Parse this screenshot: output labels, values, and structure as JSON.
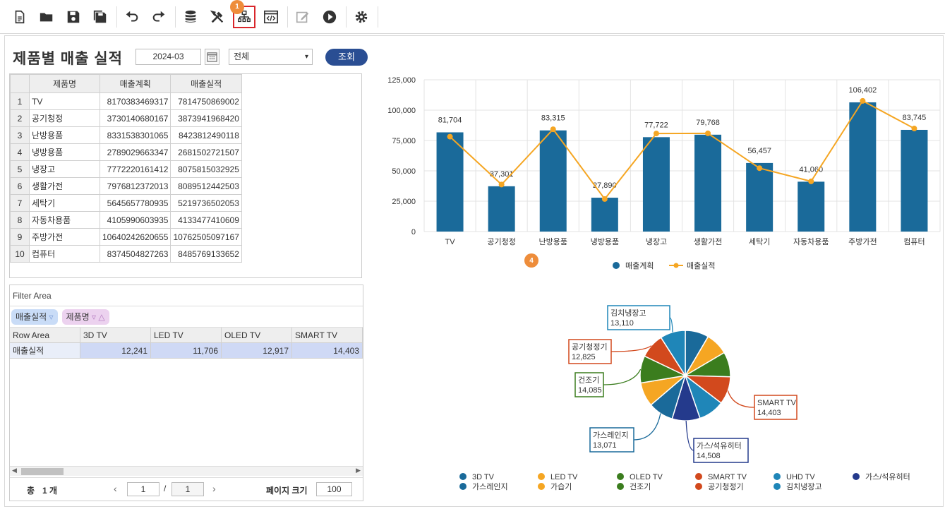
{
  "toolbar": {
    "items": [
      "new-document",
      "open-folder",
      "save",
      "save-as",
      "undo",
      "redo",
      "database",
      "tools",
      "hierarchy",
      "code-window",
      "edit",
      "run",
      "settings"
    ],
    "highlight_badge": "1"
  },
  "header": {
    "title": "제품별 매출 실적",
    "date_value": "2024-03",
    "select_value": "전체",
    "search_label": "조회"
  },
  "grid": {
    "columns": [
      "제품명",
      "매출계획",
      "매출실적"
    ],
    "rows": [
      {
        "n": "1",
        "name": "TV",
        "plan": "8170383469317",
        "actual": "7814750869002"
      },
      {
        "n": "2",
        "name": "공기청정",
        "plan": "3730140680167",
        "actual": "3873941968420"
      },
      {
        "n": "3",
        "name": "난방용품",
        "plan": "8331538301065",
        "actual": "8423812490118"
      },
      {
        "n": "4",
        "name": "냉방용품",
        "plan": "2789029663347",
        "actual": "2681502721507"
      },
      {
        "n": "5",
        "name": "냉장고",
        "plan": "7772220161412",
        "actual": "8075815032925"
      },
      {
        "n": "6",
        "name": "생활가전",
        "plan": "7976812372013",
        "actual": "8089512442503"
      },
      {
        "n": "7",
        "name": "세탁기",
        "plan": "5645657780935",
        "actual": "5219736502053"
      },
      {
        "n": "8",
        "name": "자동차용품",
        "plan": "4105990603935",
        "actual": "4133477410609"
      },
      {
        "n": "9",
        "name": "주방가전",
        "plan": "10640242620655",
        "actual": "10762505097167"
      },
      {
        "n": "10",
        "name": "컴퓨터",
        "plan": "8374504827263",
        "actual": "8485769133652"
      }
    ]
  },
  "pivot": {
    "filter_area_label": "Filter Area",
    "chip_measure": "매출실적",
    "chip_dimension": "제품명",
    "row_area_label": "Row Area",
    "columns": [
      "3D TV",
      "LED TV",
      "OLED TV",
      "SMART TV"
    ],
    "row_label": "매출실적",
    "values": [
      "12,241",
      "11,706",
      "12,917",
      "14,403"
    ],
    "pager": {
      "total_label": "총",
      "total_count": "1 개",
      "page_current": "1",
      "page_sep": "/",
      "page_total": "1",
      "page_size_label": "페이지 크기",
      "page_size": "100"
    }
  },
  "colors": {
    "bar": "#1a6a9a",
    "line": "#f5a623",
    "button": "#2a4e93",
    "badge": "#ee8d3b"
  },
  "annotation_badge_4": "4",
  "chart_data": [
    {
      "type": "bar",
      "categories": [
        "TV",
        "공기청정",
        "난방용품",
        "냉방용품",
        "냉장고",
        "생활가전",
        "세탁기",
        "자동차용품",
        "주방가전",
        "컴퓨터"
      ],
      "series": [
        {
          "name": "매출계획",
          "type": "bar",
          "values": [
            81704,
            37301,
            83315,
            27890,
            77722,
            79768,
            56457,
            41060,
            106402,
            83745
          ]
        },
        {
          "name": "매출실적",
          "type": "line",
          "values": [
            78148,
            38739,
            84238,
            26815,
            80758,
            80895,
            52197,
            41335,
            107625,
            84858
          ]
        }
      ],
      "data_labels": [
        "81,704",
        "37,301",
        "83,315",
        "27,890",
        "77,722",
        "79,768",
        "56,457",
        "41,060",
        "106,402",
        "83,745"
      ],
      "yticks": [
        "0",
        "25,000",
        "50,000",
        "75,000",
        "100,000",
        "125,000"
      ],
      "ylim": [
        0,
        125000
      ],
      "legend": "bottom"
    },
    {
      "type": "pie",
      "labels": [
        "3D TV",
        "LED TV",
        "OLED TV",
        "SMART TV",
        "UHD TV",
        "가스/석유히터",
        "가스레인지",
        "가습기",
        "건조기",
        "공기청정기",
        "김치냉장고"
      ],
      "values": [
        12241,
        11706,
        12917,
        14403,
        13500,
        14508,
        13071,
        12500,
        14085,
        12825,
        13110
      ],
      "colors": [
        "#1a6a9a",
        "#f5a623",
        "#3b7d1e",
        "#d2491d",
        "#1f86b8",
        "#243a8c",
        "#1a6a9a",
        "#f5a623",
        "#3b7d1e",
        "#d2491d",
        "#1f86b8"
      ],
      "callouts": [
        {
          "label": "김치냉장고",
          "value": "13,110"
        },
        {
          "label": "공기청정기",
          "value": "12,825"
        },
        {
          "label": "건조기",
          "value": "14,085"
        },
        {
          "label": "SMART TV",
          "value": "14,403"
        },
        {
          "label": "가스레인지",
          "value": "13,071"
        },
        {
          "label": "가스/석유히터",
          "value": "14,508"
        }
      ],
      "legend": "bottom"
    }
  ]
}
